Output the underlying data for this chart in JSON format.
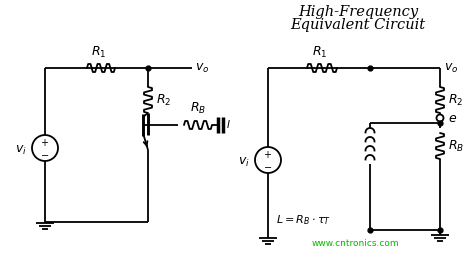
{
  "title_line1": "High-Frequency",
  "title_line2": "Equivalent Circuit",
  "watermark": "www.cntronics.com",
  "watermark_color": "#00bb00",
  "bg_color": "#ffffff",
  "line_color": "#000000",
  "title_fontsize": 10.5,
  "label_fontsize": 9,
  "small_fontsize": 7.5,
  "fig_width": 4.69,
  "fig_height": 2.54,
  "dpi": 100
}
